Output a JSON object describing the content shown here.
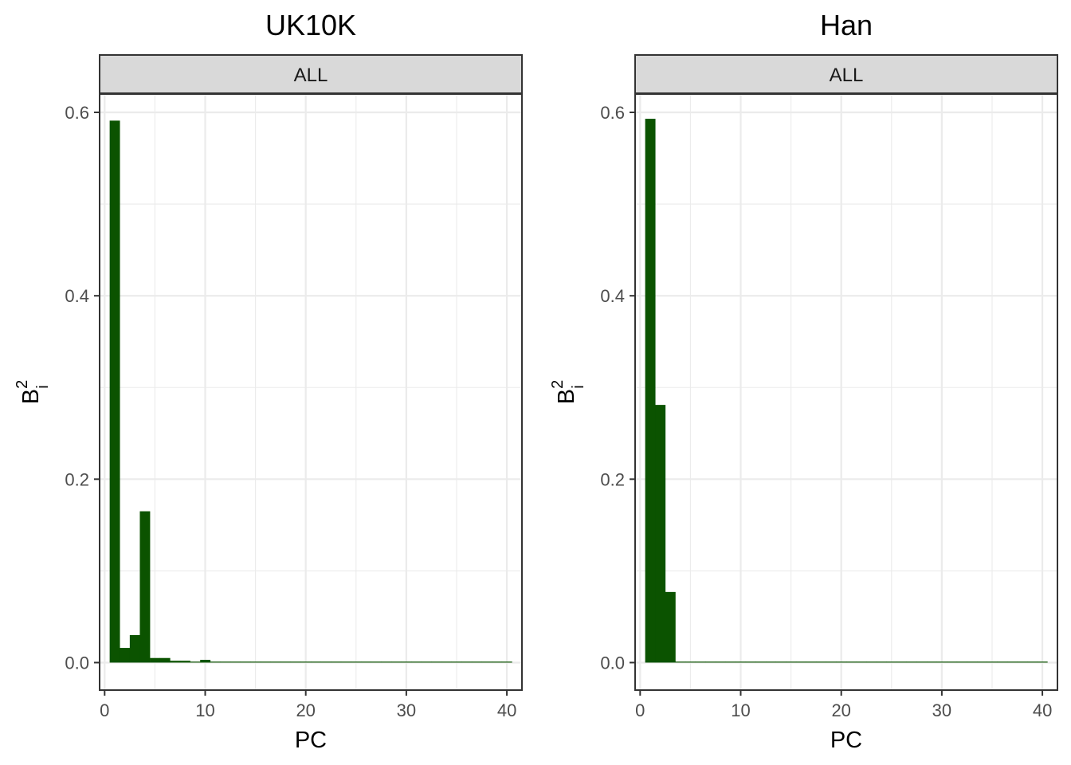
{
  "bar_color": "#0b5300",
  "chart_data": [
    {
      "type": "bar",
      "title": "UK10K",
      "strip": "ALL",
      "xlabel": "PC",
      "ylabel_base": "B",
      "ylabel_sup": "2",
      "ylabel_sub": "i",
      "xlim": [
        -0.5,
        41.5
      ],
      "ylim": [
        -0.03,
        0.62
      ],
      "x_ticks": [
        0,
        10,
        20,
        30,
        40
      ],
      "x_tick_labels": [
        "0",
        "10",
        "20",
        "30",
        "40"
      ],
      "y_ticks": [
        0,
        0.2,
        0.4,
        0.6
      ],
      "y_tick_labels": [
        "0.0",
        "0.2",
        "0.4",
        "0.6"
      ],
      "grid": true,
      "x": [
        1,
        2,
        3,
        4,
        5,
        6,
        7,
        8,
        9,
        10,
        11,
        12,
        13,
        14,
        15,
        16,
        17,
        18,
        19,
        20,
        21,
        22,
        23,
        24,
        25,
        26,
        27,
        28,
        29,
        30,
        31,
        32,
        33,
        34,
        35,
        36,
        37,
        38,
        39,
        40
      ],
      "values": [
        0.591,
        0.016,
        0.03,
        0.165,
        0.005,
        0.005,
        0.002,
        0.002,
        0.001,
        0.003,
        0.001,
        0.001,
        0,
        0,
        0,
        0,
        0,
        0,
        0,
        0,
        0,
        0,
        0,
        0,
        0,
        0,
        0,
        0,
        0,
        0,
        0,
        0,
        0,
        0,
        0,
        0,
        0,
        0,
        0,
        0
      ]
    },
    {
      "type": "bar",
      "title": "Han",
      "strip": "ALL",
      "xlabel": "PC",
      "ylabel_base": "B",
      "ylabel_sup": "2",
      "ylabel_sub": "i",
      "xlim": [
        -0.5,
        41.5
      ],
      "ylim": [
        -0.03,
        0.62
      ],
      "x_ticks": [
        0,
        10,
        20,
        30,
        40
      ],
      "x_tick_labels": [
        "0",
        "10",
        "20",
        "30",
        "40"
      ],
      "y_ticks": [
        0,
        0.2,
        0.4,
        0.6
      ],
      "y_tick_labels": [
        "0.0",
        "0.2",
        "0.4",
        "0.6"
      ],
      "grid": true,
      "x": [
        1,
        2,
        3,
        4,
        5,
        6,
        7,
        8,
        9,
        10,
        11,
        12,
        13,
        14,
        15,
        16,
        17,
        18,
        19,
        20,
        21,
        22,
        23,
        24,
        25,
        26,
        27,
        28,
        29,
        30,
        31,
        32,
        33,
        34,
        35,
        36,
        37,
        38,
        39,
        40
      ],
      "values": [
        0.593,
        0.281,
        0.077,
        0.001,
        0.001,
        0.001,
        0.001,
        0.001,
        0,
        0,
        0,
        0,
        0,
        0,
        0,
        0,
        0,
        0,
        0,
        0,
        0,
        0,
        0,
        0,
        0,
        0,
        0,
        0,
        0,
        0,
        0,
        0,
        0,
        0,
        0,
        0,
        0,
        0,
        0,
        0
      ]
    }
  ]
}
